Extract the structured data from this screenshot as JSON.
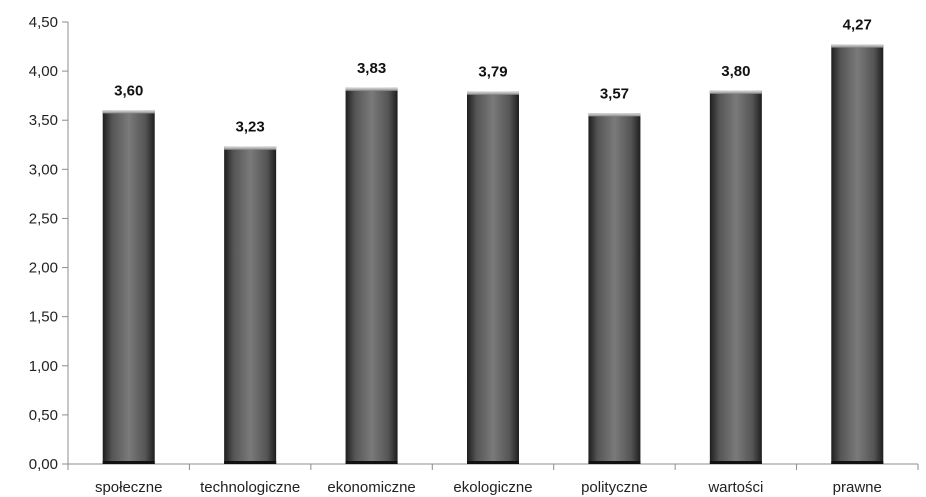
{
  "chart_data": {
    "type": "bar",
    "title": "",
    "xlabel": "",
    "ylabel": "",
    "ylim": [
      0,
      4.5
    ],
    "yticks": [
      "0,00",
      "0,50",
      "1,00",
      "1,50",
      "2,00",
      "2,50",
      "3,00",
      "3,50",
      "4,00",
      "4,50"
    ],
    "grid": false,
    "categories": [
      "społeczne",
      "technologiczne",
      "ekonomiczne",
      "ekologiczne",
      "polityczne",
      "wartości",
      "prawne"
    ],
    "values": [
      3.6,
      3.23,
      3.83,
      3.79,
      3.57,
      3.8,
      4.27
    ],
    "data_labels": [
      "3,60",
      "3,23",
      "3,83",
      "3,79",
      "3,57",
      "3,80",
      "4,27"
    ],
    "bar_color": "#6e6e6e"
  }
}
